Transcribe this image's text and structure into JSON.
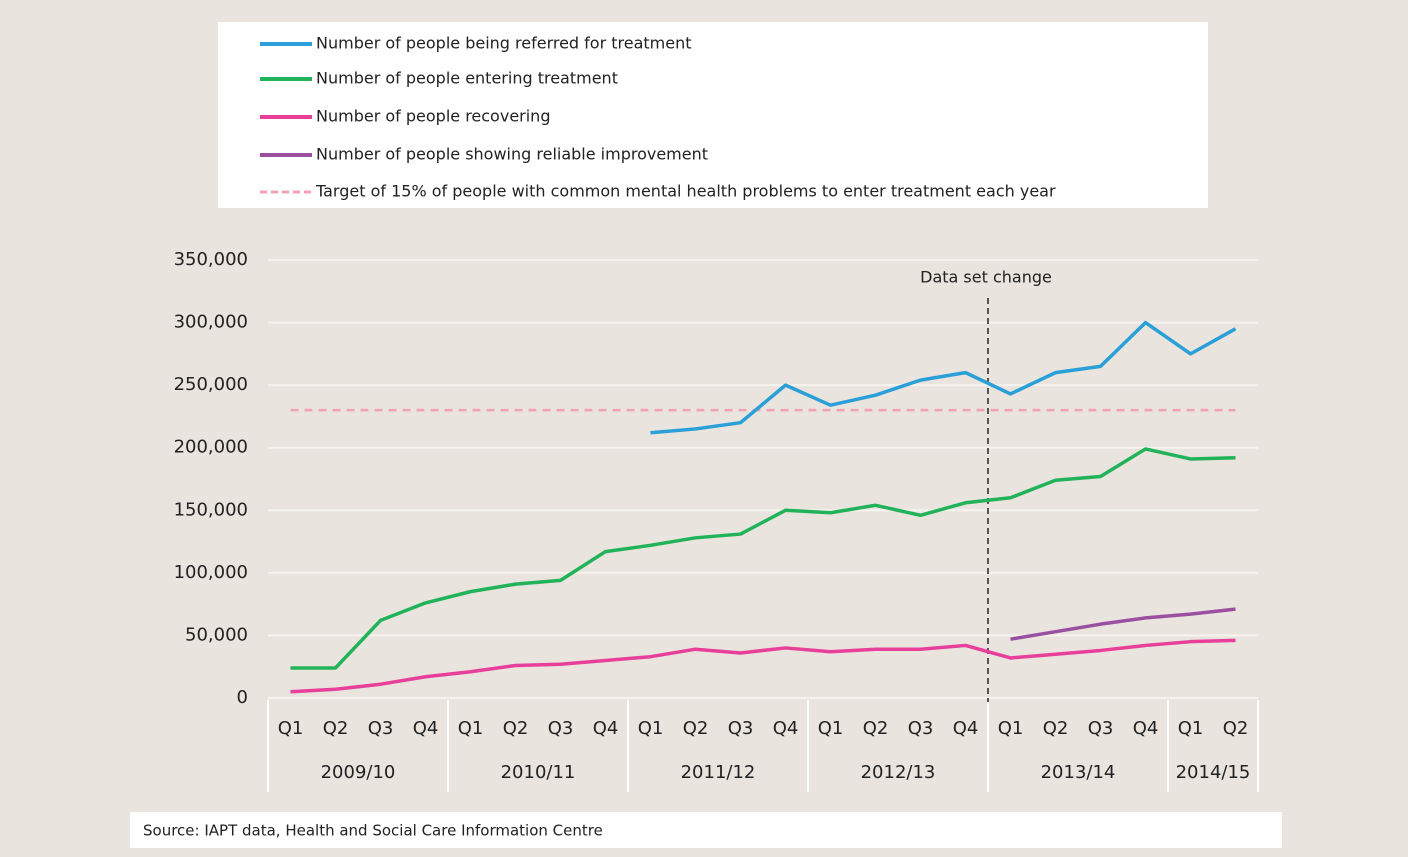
{
  "chart_data": {
    "type": "line",
    "years": [
      {
        "label": "2009/10",
        "quarters": [
          "Q1",
          "Q2",
          "Q3",
          "Q4"
        ]
      },
      {
        "label": "2010/11",
        "quarters": [
          "Q1",
          "Q2",
          "Q3",
          "Q4"
        ]
      },
      {
        "label": "2011/12",
        "quarters": [
          "Q1",
          "Q2",
          "Q3",
          "Q4"
        ]
      },
      {
        "label": "2012/13",
        "quarters": [
          "Q1",
          "Q2",
          "Q3",
          "Q4"
        ]
      },
      {
        "label": "2013/14",
        "quarters": [
          "Q1",
          "Q2",
          "Q3",
          "Q4"
        ]
      },
      {
        "label": "2014/15",
        "quarters": [
          "Q1",
          "Q2"
        ]
      }
    ],
    "series": [
      {
        "name": "Number of people being referred for treatment",
        "color": "#2a9fd8",
        "values": [
          null,
          null,
          null,
          null,
          null,
          null,
          null,
          null,
          212000,
          215000,
          220000,
          250000,
          234000,
          242000,
          254000,
          260000,
          243000,
          260000,
          265000,
          300000,
          275000,
          295000
        ]
      },
      {
        "name": "Number of people entering treatment",
        "color": "#22b35a",
        "values": [
          24000,
          24000,
          62000,
          76000,
          85000,
          91000,
          94000,
          117000,
          122000,
          128000,
          131000,
          150000,
          148000,
          154000,
          146000,
          156000,
          160000,
          174000,
          177000,
          199000,
          191000,
          192000
        ]
      },
      {
        "name": "Number of people recovering",
        "color": "#e8409a",
        "values": [
          5000,
          7000,
          11000,
          17000,
          21000,
          26000,
          27000,
          30000,
          33000,
          39000,
          36000,
          40000,
          37000,
          39000,
          39000,
          42000,
          32000,
          35000,
          38000,
          42000,
          45000,
          46000
        ]
      },
      {
        "name": "Number of people showing reliable improvement",
        "color": "#9b4fa0",
        "values": [
          null,
          null,
          null,
          null,
          null,
          null,
          null,
          null,
          null,
          null,
          null,
          null,
          null,
          null,
          null,
          null,
          47000,
          53000,
          59000,
          64000,
          67000,
          71000
        ]
      }
    ],
    "target": {
      "name": "Target of 15% of people with common mental health problems to enter treatment each year",
      "color": "#f4a0b4",
      "value": 230000
    },
    "annotation": "Data set change",
    "ylim": [
      0,
      350000
    ],
    "yticks": [
      0,
      {
        "value": 50000,
        "label": "50,000"
      },
      {
        "value": 100000,
        "label": "100,000"
      },
      {
        "value": 150000,
        "label": "150,000"
      },
      {
        "value": 200000,
        "label": "200,000"
      },
      {
        "value": 250000,
        "label": "250,000"
      },
      {
        "value": 300000,
        "label": "300,000"
      },
      {
        "value": 350000,
        "label": "350,000"
      }
    ],
    "grid": true,
    "source": "Source: IAPT data, Health and Social Care Information Centre"
  }
}
